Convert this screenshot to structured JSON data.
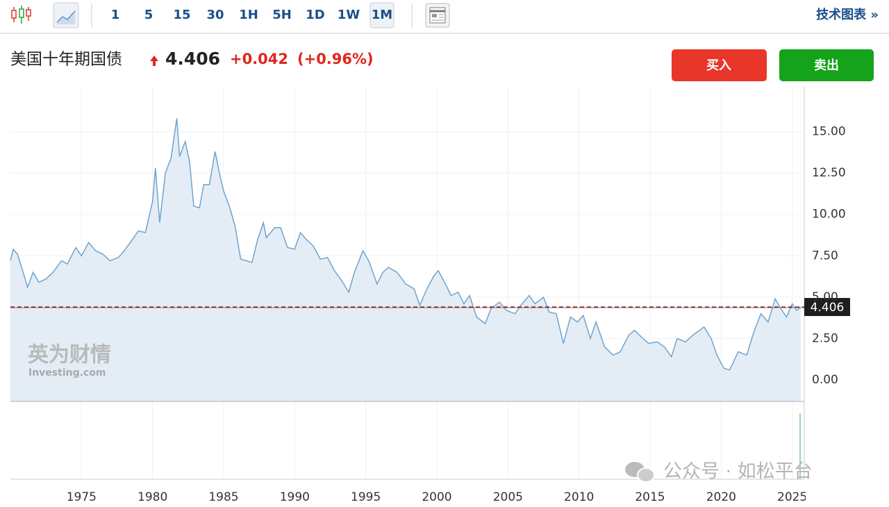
{
  "toolbar": {
    "intervals": [
      "1",
      "5",
      "15",
      "30",
      "1H",
      "5H",
      "1D",
      "1W",
      "1M"
    ],
    "active": 8,
    "tech": "技术图表 »"
  },
  "header": {
    "title": "美国十年期国债",
    "price": "4.406",
    "change": "+0.042",
    "change_pct": "(+0.96%)",
    "buy": "买入",
    "sell": "卖出"
  },
  "watermark": {
    "brand": "英为财情",
    "site": "Investing.com",
    "wechat": "公众号 · 如松平台"
  },
  "chart_data": {
    "type": "area",
    "color": "#6fa3cf",
    "fill": "#e4edf5",
    "grid": true,
    "x": [
      1970.0,
      1970.2,
      1970.5,
      1971.0,
      1971.2,
      1971.6,
      1972.0,
      1972.5,
      1973.0,
      1973.6,
      1974.0,
      1974.6,
      1975.0,
      1975.5,
      1976.0,
      1976.5,
      1977.0,
      1977.6,
      1978.0,
      1978.6,
      1979.0,
      1979.5,
      1980.0,
      1980.2,
      1980.5,
      1980.9,
      1981.3,
      1981.7,
      1981.9,
      1982.3,
      1982.6,
      1982.9,
      1983.3,
      1983.6,
      1984.0,
      1984.4,
      1984.7,
      1985.0,
      1985.4,
      1985.8,
      1986.2,
      1986.6,
      1987.0,
      1987.4,
      1987.8,
      1988.0,
      1988.6,
      1989.0,
      1989.5,
      1990.0,
      1990.4,
      1990.8,
      1991.3,
      1991.8,
      1992.3,
      1992.8,
      1993.3,
      1993.8,
      1994.2,
      1994.8,
      1995.2,
      1995.8,
      1996.2,
      1996.6,
      1997.2,
      1997.8,
      1998.4,
      1998.8,
      1999.3,
      1999.8,
      2000.1,
      2000.6,
      2001.0,
      2001.5,
      2001.9,
      2002.3,
      2002.8,
      2003.4,
      2003.8,
      2004.4,
      2004.9,
      2005.5,
      2005.9,
      2006.5,
      2006.9,
      2007.5,
      2007.9,
      2008.4,
      2008.9,
      2009.4,
      2009.9,
      2010.3,
      2010.8,
      2011.2,
      2011.8,
      2012.4,
      2012.9,
      2013.5,
      2013.9,
      2014.5,
      2014.9,
      2015.5,
      2016.0,
      2016.5,
      2016.9,
      2017.5,
      2018.0,
      2018.8,
      2019.3,
      2019.7,
      2020.2,
      2020.6,
      2021.2,
      2021.8,
      2022.3,
      2022.8,
      2023.3,
      2023.8,
      2024.2,
      2024.6,
      2025.0,
      2025.3,
      2025.6
    ],
    "values": [
      7.2,
      7.9,
      7.6,
      6.2,
      5.6,
      6.5,
      5.9,
      6.1,
      6.5,
      7.2,
      7.0,
      8.0,
      7.5,
      8.3,
      7.8,
      7.6,
      7.2,
      7.4,
      7.8,
      8.5,
      9.0,
      8.9,
      10.8,
      12.8,
      9.5,
      12.5,
      13.4,
      15.8,
      13.5,
      14.4,
      13.2,
      10.5,
      10.4,
      11.8,
      11.8,
      13.8,
      12.5,
      11.4,
      10.5,
      9.3,
      7.3,
      7.2,
      7.1,
      8.5,
      9.5,
      8.6,
      9.2,
      9.2,
      8.0,
      7.9,
      8.9,
      8.5,
      8.1,
      7.3,
      7.4,
      6.6,
      6.0,
      5.3,
      6.5,
      7.8,
      7.2,
      5.8,
      6.5,
      6.8,
      6.5,
      5.8,
      5.5,
      4.5,
      5.5,
      6.3,
      6.6,
      5.8,
      5.1,
      5.3,
      4.6,
      5.1,
      3.8,
      3.4,
      4.3,
      4.7,
      4.2,
      4.0,
      4.5,
      5.1,
      4.6,
      5.0,
      4.1,
      4.0,
      2.2,
      3.8,
      3.5,
      3.9,
      2.5,
      3.5,
      2.0,
      1.5,
      1.7,
      2.7,
      3.0,
      2.5,
      2.2,
      2.3,
      2.0,
      1.4,
      2.5,
      2.3,
      2.7,
      3.2,
      2.5,
      1.5,
      0.7,
      0.6,
      1.7,
      1.5,
      2.9,
      4.0,
      3.5,
      4.9,
      4.3,
      3.8,
      4.6,
      4.2,
      4.406
    ],
    "xlim": [
      1970,
      2025.7
    ],
    "ylim": [
      -1.3,
      17.5
    ],
    "xticks": [
      1975,
      1980,
      1985,
      1990,
      1995,
      2000,
      2005,
      2010,
      2015,
      2020,
      2025
    ],
    "yticks": [
      {
        "value": 0,
        "label": "0.00"
      },
      {
        "value": 2.5,
        "label": "2.50"
      },
      {
        "value": 5,
        "label": "5.00"
      },
      {
        "value": 7.5,
        "label": "7.50"
      },
      {
        "value": 10,
        "label": "10.00"
      },
      {
        "value": 12.5,
        "label": "12.50"
      },
      {
        "value": 15,
        "label": "15.00"
      }
    ]
  }
}
